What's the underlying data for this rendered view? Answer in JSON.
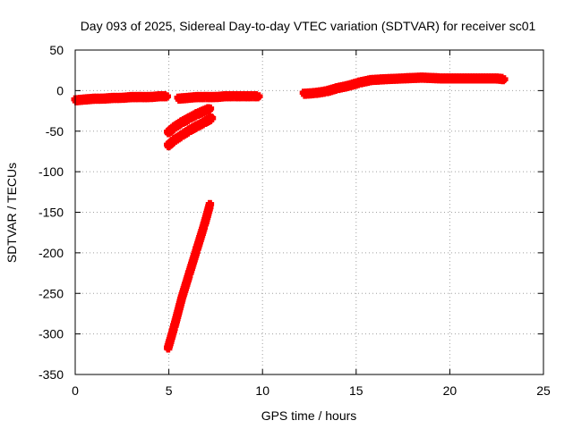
{
  "chart_data": {
    "type": "scatter",
    "title": "Day 093 of 2025, Sidereal Day-to-day VTEC variation (SDTVAR) for receiver sc01",
    "xlabel": "GPS time / hours",
    "ylabel": "SDTVAR / TECUs",
    "xlim": [
      0,
      25
    ],
    "ylim": [
      -350,
      50
    ],
    "xticks": [
      "0",
      "5",
      "10",
      "15",
      "20",
      "25"
    ],
    "yticks": [
      "50",
      "0",
      "-50",
      "-100",
      "-150",
      "-200",
      "-250",
      "-300",
      "-350"
    ],
    "grid": true,
    "marker": "+",
    "color": "#ff0000",
    "series": [
      {
        "x": [
          0.0,
          0.5,
          1.0,
          1.5,
          2.0,
          2.5,
          3.0,
          3.5,
          4.0,
          4.5,
          4.9
        ],
        "y": [
          -12,
          -11,
          -10,
          -10,
          -9,
          -9,
          -8,
          -8,
          -8,
          -7,
          -7
        ]
      },
      {
        "x": [
          5.5,
          6.0,
          6.5,
          7.0,
          7.5,
          8.0,
          8.5,
          9.0,
          9.5,
          9.8
        ],
        "y": [
          -10,
          -9,
          -8,
          -8,
          -8,
          -7,
          -7,
          -7,
          -7,
          -7
        ]
      },
      {
        "x": [
          4.95,
          5.3,
          5.7,
          6.1,
          6.5,
          6.9,
          7.2
        ],
        "y": [
          -52,
          -45,
          -39,
          -34,
          -29,
          -25,
          -22
        ]
      },
      {
        "x": [
          4.95,
          5.3,
          5.7,
          6.1,
          6.5,
          6.9,
          7.3
        ],
        "y": [
          -68,
          -61,
          -55,
          -49,
          -44,
          -39,
          -34
        ]
      },
      {
        "x": [
          4.95,
          5.3,
          5.7,
          6.1,
          6.5,
          6.9,
          7.2
        ],
        "y": [
          -318,
          -290,
          -255,
          -225,
          -195,
          -165,
          -140
        ]
      },
      {
        "x": [
          12.2,
          12.8,
          13.4,
          14.0,
          14.6,
          15.2,
          15.8,
          16.5,
          17.5,
          18.5,
          19.5,
          20.5,
          21.5,
          22.5,
          22.9
        ],
        "y": [
          -4,
          -3,
          -1,
          3,
          6,
          10,
          13,
          14,
          15,
          16,
          15,
          15,
          15,
          15,
          14
        ]
      }
    ]
  }
}
